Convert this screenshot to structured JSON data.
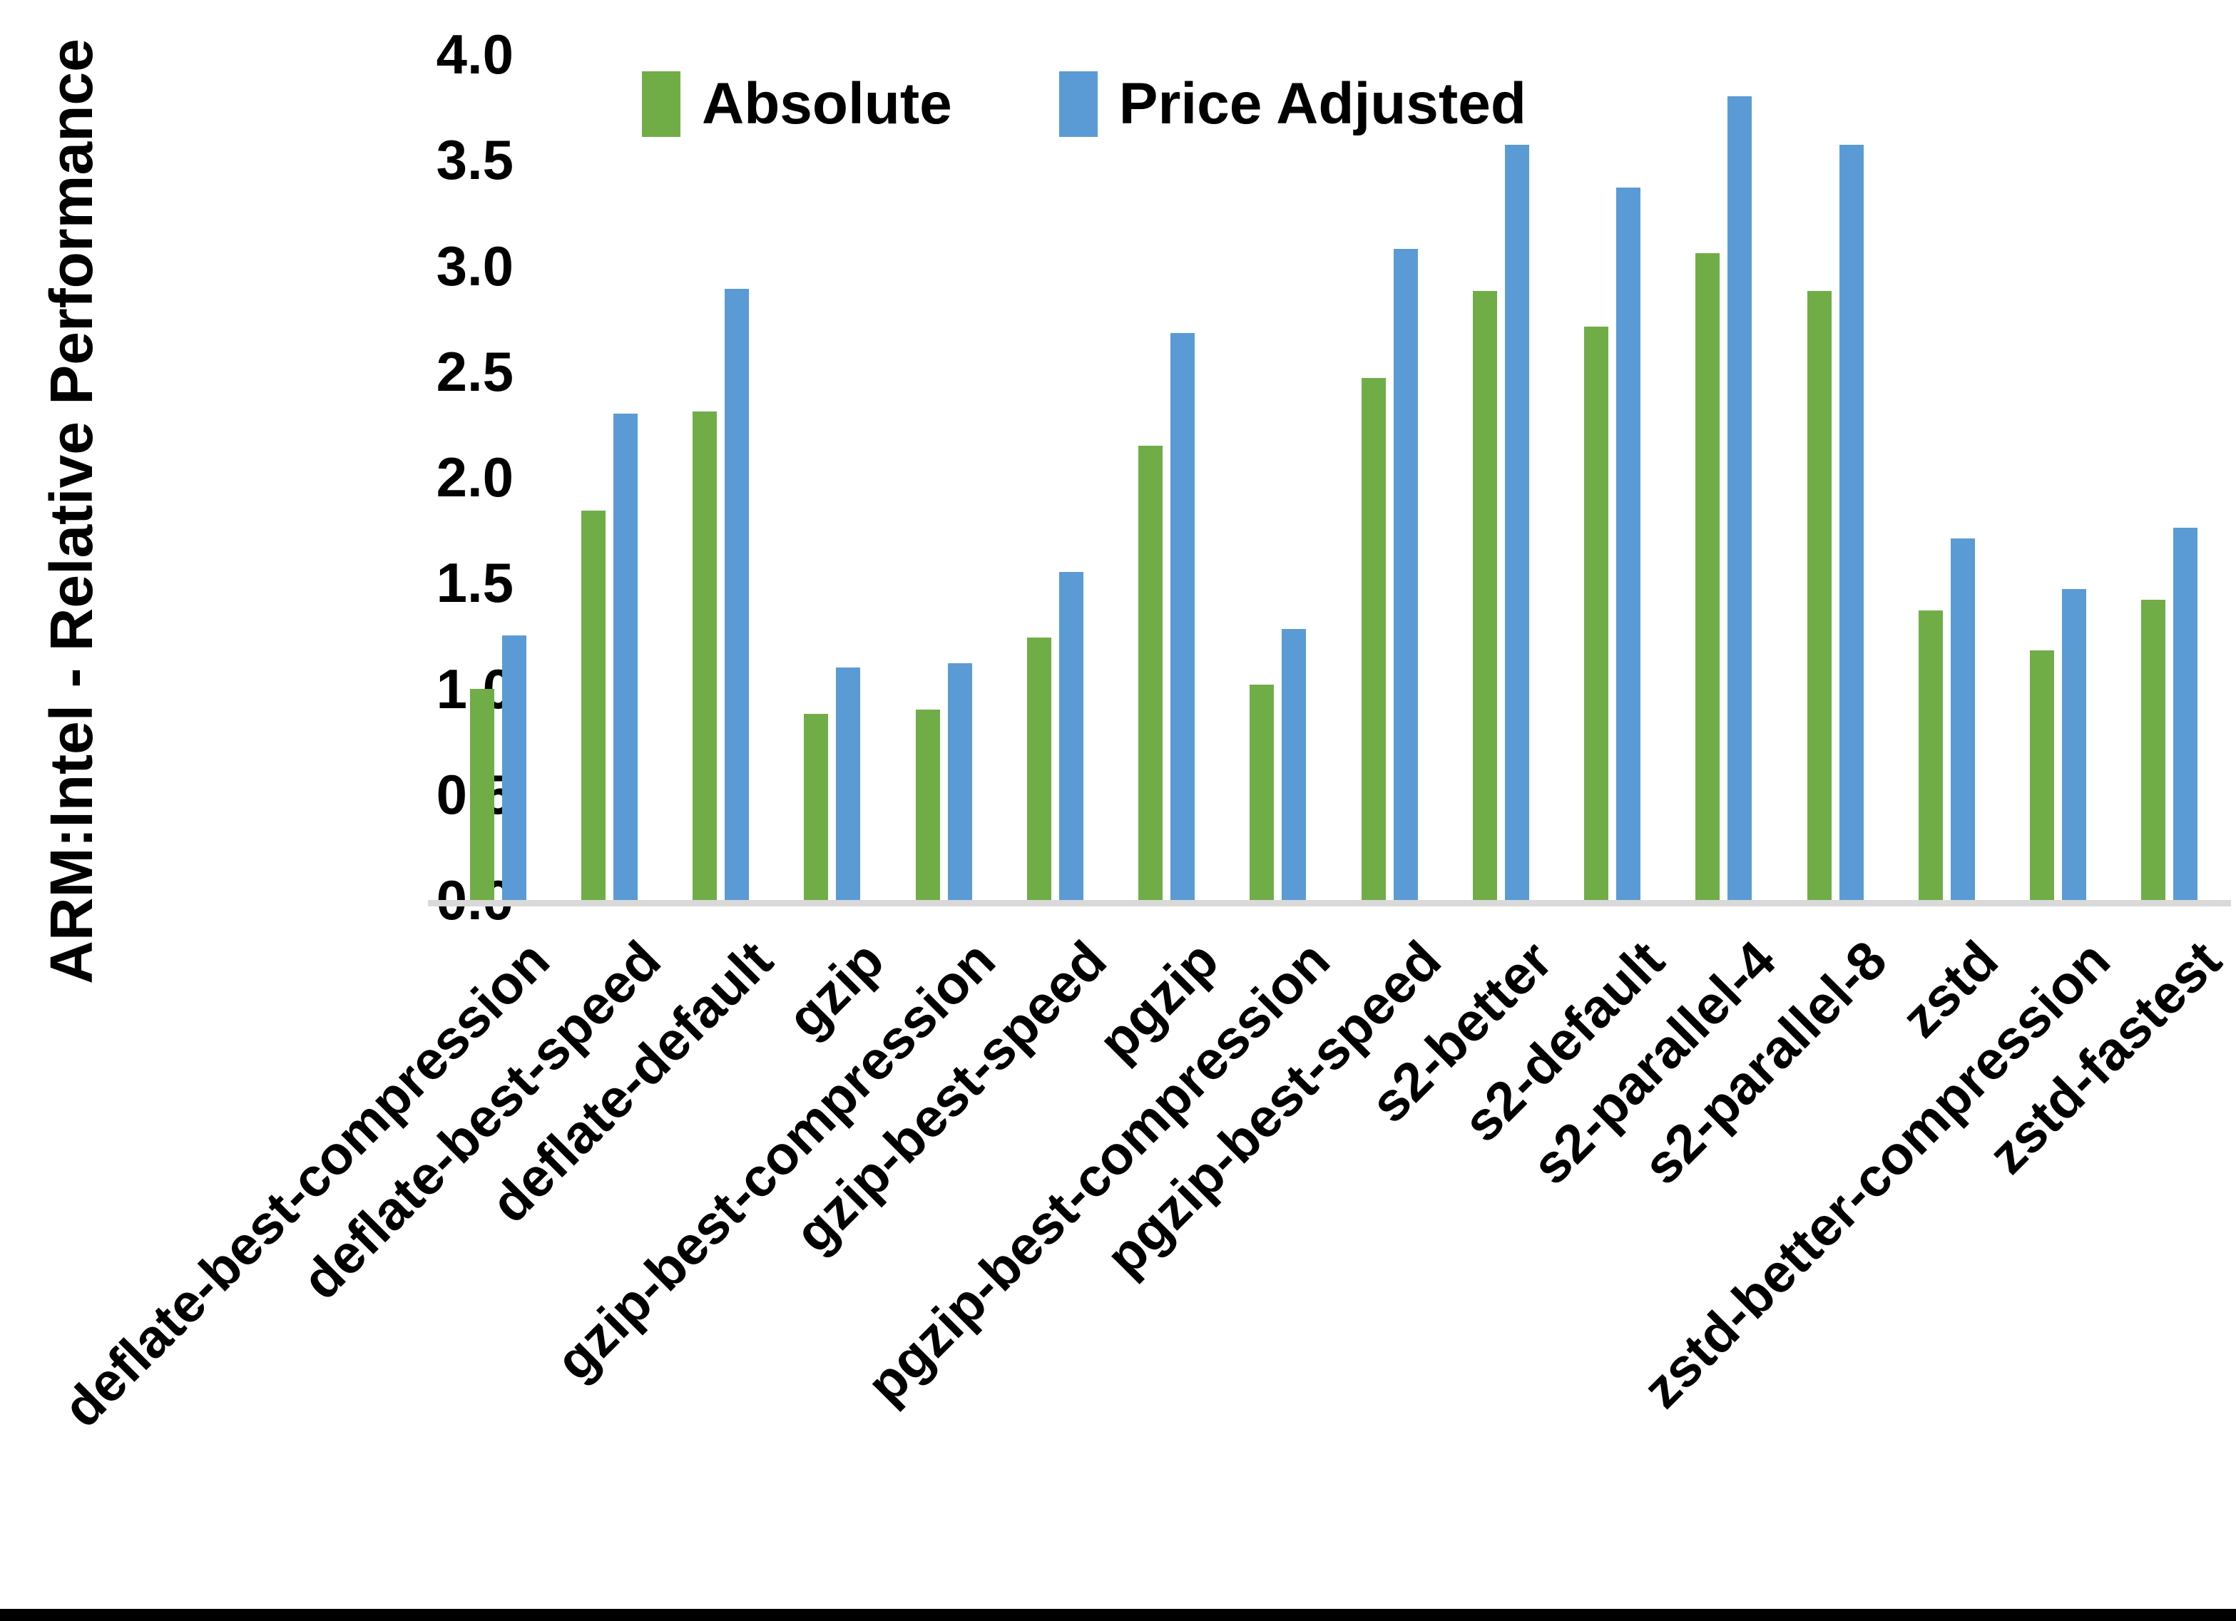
{
  "chart_data": {
    "type": "bar",
    "title": "",
    "ylabel": "ARM:Intel - Relative Performance",
    "xlabel": "",
    "ylim": [
      0.0,
      4.0
    ],
    "ytick_labels": [
      "0.0",
      "0.5",
      "1.0",
      "1.5",
      "2.0",
      "2.5",
      "3.0",
      "3.5",
      "4.0"
    ],
    "grid": false,
    "legend_position": "top-inside",
    "categories": [
      "deflate-best-compression",
      "deflate-best-speed",
      "deflate-default",
      "gzip",
      "gzip-best-compression",
      "gzip-best-speed",
      "pgzip",
      "pgzip-best-compression",
      "pgzip-best-speed",
      "s2-better",
      "s2-default",
      "s2-parallel-4",
      "s2-parallel-8",
      "zstd",
      "zstd-better-compression",
      "zstd-fastest"
    ],
    "series": [
      {
        "name": "Absolute",
        "color": "#70AD47",
        "values": [
          1.0,
          1.84,
          2.31,
          0.88,
          0.9,
          1.24,
          2.15,
          1.02,
          2.47,
          2.88,
          2.71,
          3.06,
          2.88,
          1.37,
          1.18,
          1.42
        ]
      },
      {
        "name": "Price Adjusted",
        "color": "#5B9BD5",
        "values": [
          1.25,
          2.3,
          2.89,
          1.1,
          1.12,
          1.55,
          2.68,
          1.28,
          3.08,
          3.57,
          3.37,
          3.8,
          3.57,
          1.71,
          1.47,
          1.76
        ]
      }
    ]
  },
  "colors": {
    "background": "#FFFFFF",
    "axis_line": "#D9D9D9",
    "text": "#000000",
    "bottom_border": "#000000"
  }
}
